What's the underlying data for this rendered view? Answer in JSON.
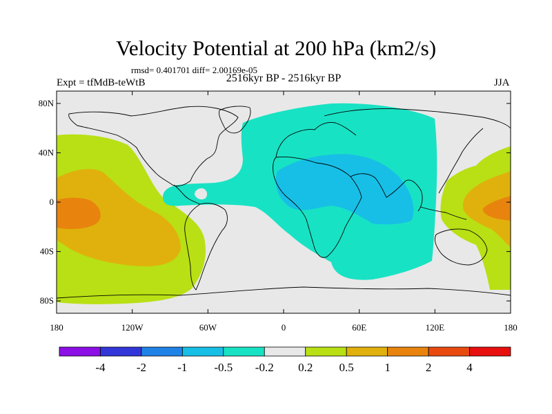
{
  "header": {
    "title": "Velocity Potential at 200 hPa (km2/s)",
    "stats": "rmsd= 0.401701 diff= 2.00169e-05",
    "experiment": "Expt = tfMdB-teWtB",
    "period": "2516kyr BP - 2516kyr BP",
    "season": "JJA"
  },
  "axes": {
    "lat_ticks": [
      {
        "value": 80,
        "label": "80N"
      },
      {
        "value": 40,
        "label": "40N"
      },
      {
        "value": 0,
        "label": "0"
      },
      {
        "value": -40,
        "label": "40S"
      },
      {
        "value": -80,
        "label": "80S"
      }
    ],
    "lon_ticks": [
      {
        "value": -180,
        "label": "180"
      },
      {
        "value": -120,
        "label": "120W"
      },
      {
        "value": -60,
        "label": "60W"
      },
      {
        "value": 0,
        "label": "0"
      },
      {
        "value": 60,
        "label": "60E"
      },
      {
        "value": 120,
        "label": "120E"
      },
      {
        "value": 180,
        "label": "180"
      }
    ],
    "lon_range": [
      -180,
      180
    ],
    "lat_range": [
      -90,
      90
    ]
  },
  "colorbar": {
    "colors": [
      "#8c0fe6",
      "#3236d8",
      "#1f82e6",
      "#17bfe6",
      "#18e2c4",
      "#e8e8e8",
      "#b8e014",
      "#e0b10c",
      "#e8840e",
      "#e84a10",
      "#e80f0f"
    ],
    "labels": [
      "-4",
      "-2",
      "-1",
      "-0.5",
      "-0.2",
      "0.2",
      "0.5",
      "1",
      "2",
      "4"
    ]
  },
  "fields": {
    "background_color": "#e8e8e8",
    "levels": {
      "neg_0_2": "#18e2c4",
      "neg_0_5": "#17bfe6",
      "pos_0_2": "#b8e014",
      "pos_0_5": "#e0b10c",
      "pos_1": "#e8840e"
    }
  }
}
